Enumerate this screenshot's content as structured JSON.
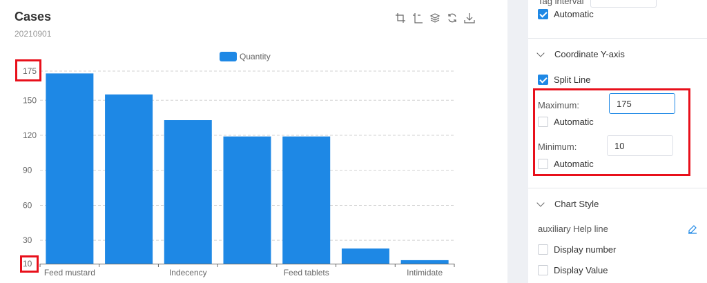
{
  "chart_header": {
    "title": "Cases",
    "subtitle": "20210901"
  },
  "toolbar": {
    "icons": [
      "crop-icon",
      "crop-alt-icon",
      "layers-icon",
      "refresh-icon",
      "download-icon"
    ]
  },
  "chart_data": {
    "type": "bar",
    "categories": [
      "Feed mustard",
      "",
      "Indecency",
      "",
      "Feed tablets",
      "",
      "Intimidate"
    ],
    "series": [
      {
        "name": "Quantity",
        "values": [
          173,
          155,
          133,
          119,
          119,
          23,
          13
        ],
        "color": "#1e88e5"
      }
    ],
    "x_tick_labels": [
      "Feed mustard",
      "Indecency",
      "Feed tablets",
      "Intimidate"
    ],
    "y_ticks": [
      10,
      30,
      60,
      90,
      120,
      150,
      175
    ],
    "ylim": [
      10,
      175
    ],
    "legend_position": "top-center",
    "grid": true
  },
  "settings": {
    "tag_interval_label": "Tag interval",
    "tag_interval_auto_label": "Automatic",
    "y_axis_section_title": "Coordinate Y-axis",
    "split_line_label": "Split Line",
    "maximum_label": "Maximum:",
    "maximum_value": "175",
    "maximum_auto_label": "Automatic",
    "minimum_label": "Minimum:",
    "minimum_value": "10",
    "minimum_auto_label": "Automatic",
    "chart_style_section_title": "Chart Style",
    "aux_help_line_label": "auxiliary Help line",
    "display_number_label": "Display number",
    "display_value_label": "Display Value"
  },
  "colors": {
    "accent": "#1e88e5",
    "highlight": "#e8101b",
    "panel_background": "#eef0f4"
  }
}
